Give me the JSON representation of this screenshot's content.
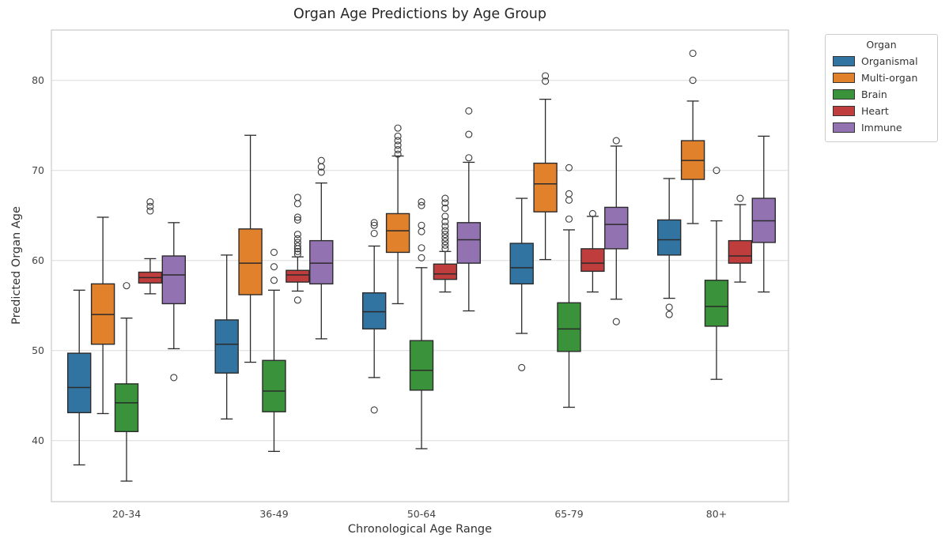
{
  "legend": {
    "title": "Organ",
    "entries": [
      {
        "label": "Organismal",
        "color": "#3274a1"
      },
      {
        "label": "Multi-organ",
        "color": "#e1812c"
      },
      {
        "label": "Brain",
        "color": "#3a923a"
      },
      {
        "label": "Heart",
        "color": "#c03d3e"
      },
      {
        "label": "Immune",
        "color": "#9372b2"
      }
    ]
  },
  "chart_data": {
    "type": "box",
    "title": "Organ Age Predictions by Age Group",
    "xlabel": "Chronological Age Range",
    "ylabel": "Predicted Organ Age",
    "categories": [
      "20-34",
      "36-49",
      "50-64",
      "65-79",
      "80+"
    ],
    "yticks": [
      40,
      50,
      60,
      70,
      80
    ],
    "ylim": [
      33.2,
      85.6
    ],
    "grid": "horizontal",
    "legend_position": "outside-top-right",
    "series": [
      {
        "name": "Organismal",
        "color": "#3274a1",
        "boxes": [
          {
            "whislo": 37.3,
            "q1": 43.1,
            "med": 45.9,
            "q3": 49.7,
            "whishi": 56.7,
            "outliers": []
          },
          {
            "whislo": 42.4,
            "q1": 47.5,
            "med": 50.7,
            "q3": 53.4,
            "whishi": 60.6,
            "outliers": []
          },
          {
            "whislo": 47.0,
            "q1": 52.4,
            "med": 54.3,
            "q3": 56.4,
            "whishi": 61.6,
            "outliers": [
              43.4,
              63.0,
              63.9,
              64.2
            ]
          },
          {
            "whislo": 51.9,
            "q1": 57.4,
            "med": 59.2,
            "q3": 61.9,
            "whishi": 66.9,
            "outliers": [
              48.1
            ]
          },
          {
            "whislo": 55.8,
            "q1": 60.6,
            "med": 62.3,
            "q3": 64.5,
            "whishi": 69.1,
            "outliers": [
              54.0,
              54.8
            ]
          }
        ]
      },
      {
        "name": "Multi-organ",
        "color": "#e1812c",
        "boxes": [
          {
            "whislo": 43.0,
            "q1": 50.7,
            "med": 54.0,
            "q3": 57.4,
            "whishi": 64.8,
            "outliers": []
          },
          {
            "whislo": 48.7,
            "q1": 56.2,
            "med": 59.7,
            "q3": 63.5,
            "whishi": 73.9,
            "outliers": []
          },
          {
            "whislo": 55.2,
            "q1": 60.9,
            "med": 63.3,
            "q3": 65.2,
            "whishi": 71.6,
            "outliers": [
              71.8,
              72.3,
              72.8,
              73.3,
              73.8,
              74.7
            ]
          },
          {
            "whislo": 60.1,
            "q1": 65.4,
            "med": 68.5,
            "q3": 70.8,
            "whishi": 77.9,
            "outliers": [
              79.9,
              80.5
            ]
          },
          {
            "whislo": 64.1,
            "q1": 69.0,
            "med": 71.1,
            "q3": 73.3,
            "whishi": 77.7,
            "outliers": [
              80.0,
              83.0
            ]
          }
        ]
      },
      {
        "name": "Brain",
        "color": "#3a923a",
        "boxes": [
          {
            "whislo": 35.5,
            "q1": 41.0,
            "med": 44.2,
            "q3": 46.3,
            "whishi": 53.6,
            "outliers": [
              57.2
            ]
          },
          {
            "whislo": 38.8,
            "q1": 43.2,
            "med": 45.5,
            "q3": 48.9,
            "whishi": 56.7,
            "outliers": [
              57.8,
              59.3,
              60.9
            ]
          },
          {
            "whislo": 39.1,
            "q1": 45.6,
            "med": 47.8,
            "q3": 51.1,
            "whishi": 59.2,
            "outliers": [
              60.3,
              61.4,
              63.2,
              63.9,
              66.1,
              66.5
            ]
          },
          {
            "whislo": 43.7,
            "q1": 49.9,
            "med": 52.4,
            "q3": 55.3,
            "whishi": 63.4,
            "outliers": [
              64.6,
              66.7,
              67.4,
              70.3
            ]
          },
          {
            "whislo": 46.8,
            "q1": 52.7,
            "med": 54.9,
            "q3": 57.8,
            "whishi": 64.4,
            "outliers": [
              70.0
            ]
          }
        ]
      },
      {
        "name": "Heart",
        "color": "#c03d3e",
        "boxes": [
          {
            "whislo": 56.3,
            "q1": 57.5,
            "med": 58.1,
            "q3": 58.7,
            "whishi": 60.2,
            "outliers": [
              65.5,
              66.0,
              66.5
            ]
          },
          {
            "whislo": 56.6,
            "q1": 57.6,
            "med": 58.4,
            "q3": 58.9,
            "whishi": 60.4,
            "outliers": [
              55.6,
              60.7,
              61.0,
              61.3,
              61.6,
              62.0,
              62.4,
              62.9,
              64.5,
              64.8,
              66.3,
              67.0
            ]
          },
          {
            "whislo": 56.5,
            "q1": 57.9,
            "med": 58.5,
            "q3": 59.6,
            "whishi": 61.0,
            "outliers": [
              61.3,
              61.7,
              62.1,
              62.5,
              62.9,
              63.3,
              63.8,
              64.3,
              64.9,
              65.8,
              66.4,
              66.9
            ]
          },
          {
            "whislo": 56.5,
            "q1": 58.8,
            "med": 59.7,
            "q3": 61.3,
            "whishi": 64.9,
            "outliers": [
              65.2
            ]
          },
          {
            "whislo": 57.6,
            "q1": 59.7,
            "med": 60.5,
            "q3": 62.2,
            "whishi": 66.2,
            "outliers": [
              66.9
            ]
          }
        ]
      },
      {
        "name": "Immune",
        "color": "#9372b2",
        "boxes": [
          {
            "whislo": 50.2,
            "q1": 55.2,
            "med": 58.4,
            "q3": 60.5,
            "whishi": 64.2,
            "outliers": [
              47.0
            ]
          },
          {
            "whislo": 51.3,
            "q1": 57.4,
            "med": 59.7,
            "q3": 62.2,
            "whishi": 68.6,
            "outliers": [
              69.8,
              70.4,
              71.1
            ]
          },
          {
            "whislo": 54.4,
            "q1": 59.7,
            "med": 62.3,
            "q3": 64.2,
            "whishi": 70.9,
            "outliers": [
              71.4,
              74.0,
              76.6
            ]
          },
          {
            "whislo": 55.7,
            "q1": 61.3,
            "med": 64.0,
            "q3": 65.9,
            "whishi": 72.7,
            "outliers": [
              53.2,
              73.3
            ]
          },
          {
            "whislo": 56.5,
            "q1": 62.0,
            "med": 64.4,
            "q3": 66.9,
            "whishi": 73.8,
            "outliers": []
          }
        ]
      }
    ]
  }
}
